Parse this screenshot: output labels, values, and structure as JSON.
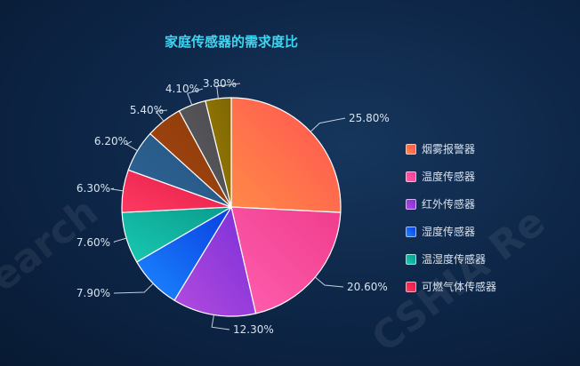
{
  "chart_data": {
    "type": "pie",
    "title": "家庭传感器的需求度比",
    "slices": [
      {
        "label": "烟雾报警器",
        "value": 25.8,
        "text": "25.80%",
        "color": "#ff8a47",
        "color2": "#ff5252"
      },
      {
        "label": "温度传感器",
        "value": 20.6,
        "text": "20.60%",
        "color": "#ff5fb0",
        "color2": "#f03c8c"
      },
      {
        "label": "红外传感器",
        "value": 12.3,
        "text": "12.30%",
        "color": "#b24bde",
        "color2": "#7a2fd8"
      },
      {
        "label": "湿度传感器",
        "value": 7.9,
        "text": "7.90%",
        "color": "#1b88ff",
        "color2": "#0a3ee0"
      },
      {
        "label": "温湿度传感器",
        "value": 7.6,
        "text": "7.60%",
        "color": "#19c9b2",
        "color2": "#0a9c8c"
      },
      {
        "label": "可燃气体传感器",
        "value": 6.3,
        "text": "6.30%",
        "color": "#ff3a62",
        "color2": "#e01c47"
      },
      {
        "label": "",
        "value": 6.2,
        "text": "6.20%",
        "color": "#2f6496",
        "color2": "#245580"
      },
      {
        "label": "",
        "value": 5.4,
        "text": "5.40%",
        "color": "#a6470f",
        "color2": "#8a3a0c"
      },
      {
        "label": "",
        "value": 4.1,
        "text": "4.10%",
        "color": "#5e5e62",
        "color2": "#4a4a4e"
      },
      {
        "label": "",
        "value": 3.8,
        "text": "3.80%",
        "color": "#9b7d05",
        "color2": "#7f6604"
      }
    ]
  },
  "watermark": {
    "left": "earch",
    "right": "CSHIA Re"
  }
}
